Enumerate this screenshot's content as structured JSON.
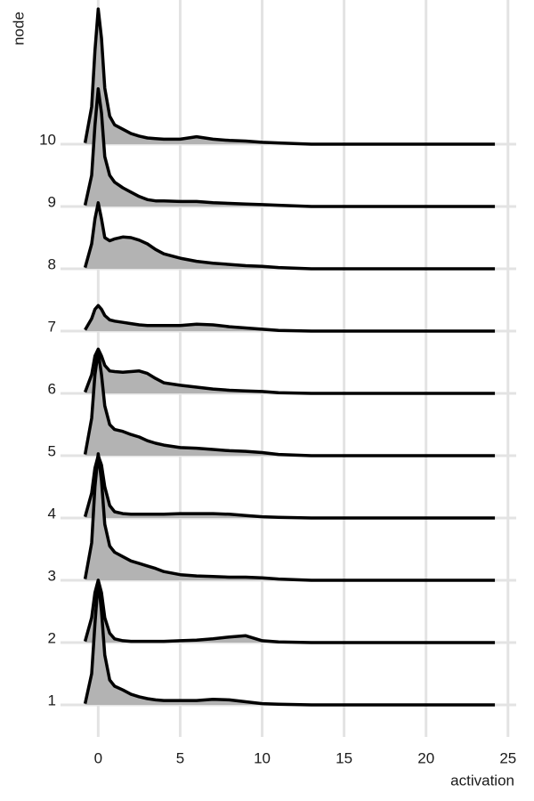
{
  "chart_data": {
    "type": "ridgeline",
    "xlabel": "activation",
    "ylabel": "node",
    "categories": [
      "1",
      "2",
      "3",
      "4",
      "5",
      "6",
      "7",
      "8",
      "9",
      "10"
    ],
    "x": [
      -0.8,
      -0.4,
      -0.2,
      0,
      0.2,
      0.4,
      0.7,
      1,
      1.5,
      2,
      2.5,
      3,
      3.5,
      4,
      5,
      6,
      7,
      8,
      9,
      10,
      11,
      13,
      15,
      20,
      24.2
    ],
    "series": [
      {
        "values": [
          0.02,
          0.5,
          1.3,
          2.0,
          1.5,
          0.8,
          0.4,
          0.3,
          0.24,
          0.17,
          0.13,
          0.1,
          0.08,
          0.07,
          0.07,
          0.07,
          0.09,
          0.08,
          0.05,
          0.02,
          0.01,
          0,
          0,
          0,
          0
        ]
      },
      {
        "values": [
          0.02,
          0.4,
          0.8,
          1.0,
          0.8,
          0.4,
          0.15,
          0.06,
          0.03,
          0.02,
          0.02,
          0.02,
          0.02,
          0.02,
          0.03,
          0.04,
          0.06,
          0.09,
          0.11,
          0.03,
          0.01,
          0,
          0,
          0,
          0
        ]
      },
      {
        "values": [
          0.02,
          0.6,
          1.5,
          2.03,
          1.6,
          0.9,
          0.55,
          0.45,
          0.38,
          0.31,
          0.27,
          0.23,
          0.19,
          0.14,
          0.09,
          0.07,
          0.06,
          0.05,
          0.05,
          0.04,
          0.02,
          0,
          0,
          0,
          0
        ]
      },
      {
        "values": [
          0.02,
          0.4,
          0.8,
          1.0,
          0.85,
          0.5,
          0.2,
          0.1,
          0.07,
          0.06,
          0.06,
          0.06,
          0.06,
          0.06,
          0.07,
          0.07,
          0.07,
          0.06,
          0.04,
          0.02,
          0.01,
          0,
          0,
          0,
          0
        ]
      },
      {
        "values": [
          0.02,
          0.6,
          1.3,
          1.67,
          1.3,
          0.8,
          0.5,
          0.42,
          0.39,
          0.34,
          0.3,
          0.24,
          0.2,
          0.17,
          0.13,
          0.12,
          0.1,
          0.08,
          0.07,
          0.05,
          0.02,
          0,
          0,
          0,
          0
        ]
      },
      {
        "values": [
          0.02,
          0.3,
          0.6,
          0.71,
          0.6,
          0.45,
          0.36,
          0.35,
          0.34,
          0.35,
          0.36,
          0.32,
          0.24,
          0.17,
          0.13,
          0.1,
          0.07,
          0.05,
          0.04,
          0.03,
          0.01,
          0,
          0,
          0,
          0
        ]
      },
      {
        "values": [
          0.02,
          0.2,
          0.35,
          0.41,
          0.35,
          0.25,
          0.18,
          0.16,
          0.14,
          0.12,
          0.1,
          0.09,
          0.09,
          0.09,
          0.09,
          0.11,
          0.1,
          0.07,
          0.05,
          0.03,
          0.01,
          0,
          0,
          0,
          0
        ]
      },
      {
        "values": [
          0.02,
          0.4,
          0.8,
          1.06,
          0.8,
          0.5,
          0.45,
          0.48,
          0.51,
          0.5,
          0.46,
          0.4,
          0.31,
          0.24,
          0.17,
          0.12,
          0.09,
          0.07,
          0.05,
          0.04,
          0.02,
          0,
          0,
          0,
          0
        ]
      },
      {
        "values": [
          0.02,
          0.5,
          1.3,
          1.89,
          1.5,
          0.8,
          0.5,
          0.39,
          0.3,
          0.23,
          0.16,
          0.11,
          0.09,
          0.09,
          0.08,
          0.08,
          0.06,
          0.05,
          0.04,
          0.03,
          0.02,
          0,
          0,
          0,
          0
        ]
      },
      {
        "values": [
          0.02,
          0.6,
          1.5,
          2.17,
          1.7,
          0.9,
          0.45,
          0.31,
          0.24,
          0.17,
          0.13,
          0.1,
          0.09,
          0.08,
          0.08,
          0.12,
          0.08,
          0.06,
          0.05,
          0.03,
          0.02,
          0,
          0,
          0,
          0
        ]
      }
    ],
    "fill": "#b3b3b3",
    "line_color": "#000000",
    "xlim": [
      -2.3,
      25.5
    ],
    "xticks": [
      0,
      5,
      10,
      15,
      20,
      25
    ],
    "grid": true
  }
}
